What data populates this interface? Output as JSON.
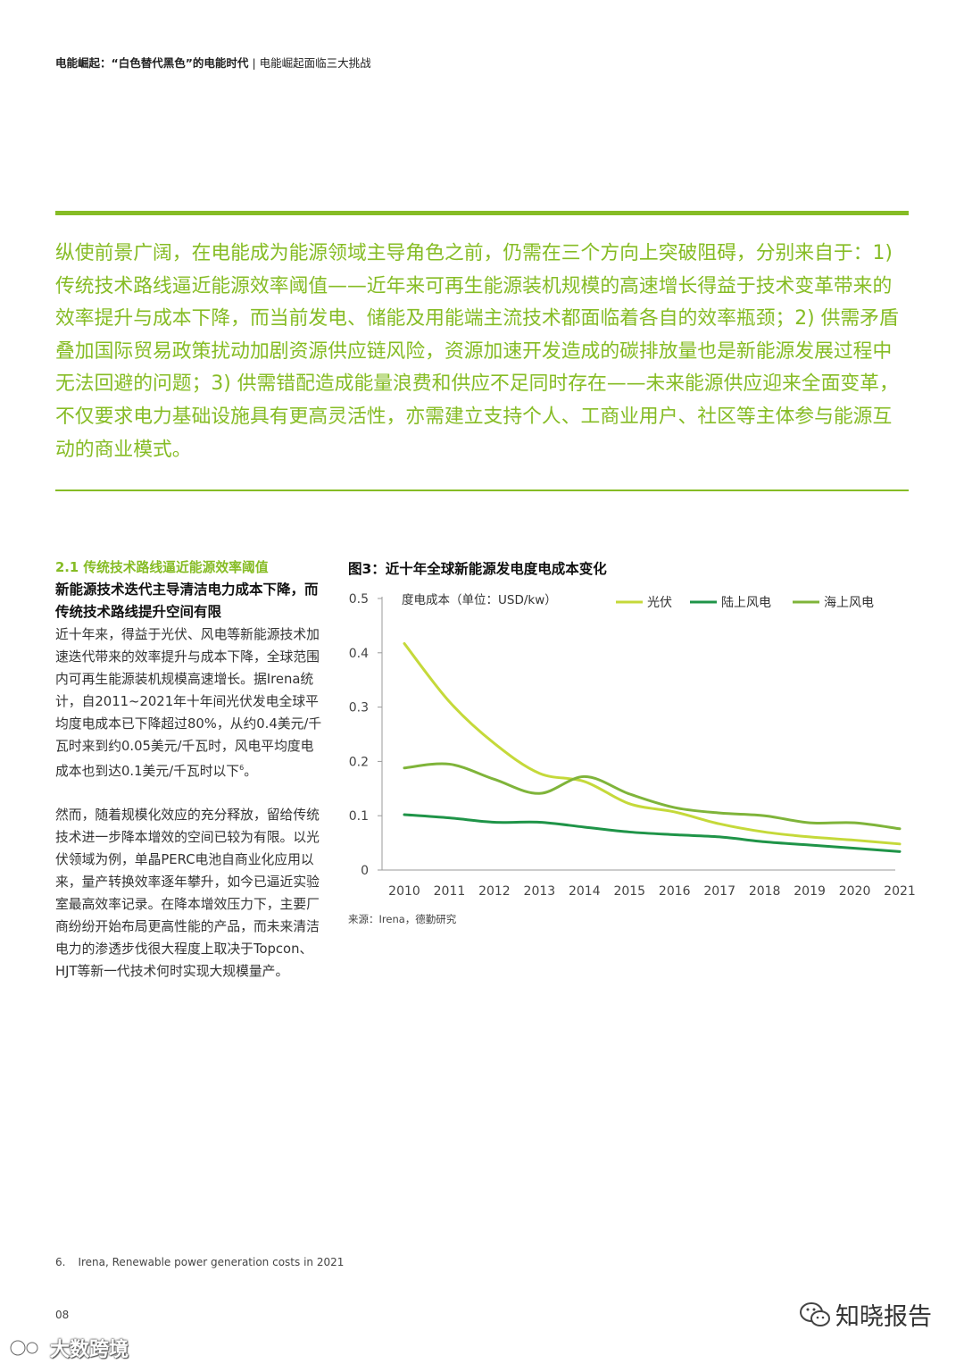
{
  "header": {
    "breadcrumb_main": "电能崛起：“白色替代黑色”的电能时代",
    "breadcrumb_sep": "|",
    "breadcrumb_sub": "电能崛起面临三大挑战"
  },
  "intro": {
    "text": "纵使前景广阔，在电能成为能源领域主导角色之前，仍需在三个方向上突破阻碍，分别来自于：1) 传统技术路线逼近能源效率阈值——近年来可再生能源装机规模的高速增长得益于技术变革带来的效率提升与成本下降，而当前发电、储能及用能端主流技术都面临着各自的效率瓶颈；2) 供需矛盾叠加国际贸易政策扰动加剧资源供应链风险，资源加速开发造成的碳排放量也是新能源发展过程中无法回避的问题；3) 供需错配造成能量浪费和供应不足同时存在——未来能源供应迎来全面变革，不仅要求电力基础设施具有更高灵活性，亦需建立支持个人、工商业用户、社区等主体参与能源互动的商业模式。"
  },
  "section": {
    "title": "2.1 传统技术路线逼近能源效率阈值",
    "subheading": "新能源技术迭代主导清洁电力成本下降，而传统技术路线提升空间有限",
    "para1": "近十年来，得益于光伏、风电等新能源技术加速迭代带来的效率提升与成本下降，全球范围内可再生能源装机规模高速增长。据Irena统计，自2011~2021年十年间光伏发电全球平均度电成本已下降超过80%，从约0.4美元/千瓦时来到约0.05美元/千瓦时，风电平均度电成本也到达0.1美元/千瓦时以下",
    "para1_sup": "6",
    "para1_end": "。",
    "para2": "然而，随着规模化效应的充分释放，留给传统技术进一步降本增效的空间已较为有限。以光伏领域为例，单晶PERC电池自商业化应用以来，量产转换效率逐年攀升，如今已逼近实验室最高效率记录。在降本增效压力下，主要厂商纷纷开始布局更高性能的产品，而未来清洁电力的渗透步伐很大程度上取决于Topcon、HJT等新一代技术何时实现大规模量产。"
  },
  "figure": {
    "title": "图3：近十年全球新能源发电度电成本变化",
    "source": "来源：Irena，德勤研究"
  },
  "chart_data": {
    "type": "line",
    "title": "图3：近十年全球新能源发电度电成本变化",
    "ylabel": "度电成本（单位：USD/kw）",
    "xlabel": "",
    "ylim": [
      0,
      0.5
    ],
    "yticks": [
      "0",
      "0.1",
      "0.2",
      "0.3",
      "0.4",
      "0.5"
    ],
    "x": [
      "2010",
      "2011",
      "2012",
      "2013",
      "2014",
      "2015",
      "2016",
      "2017",
      "2018",
      "2019",
      "2020",
      "2021"
    ],
    "grid": false,
    "legend_position": "top-right",
    "series": [
      {
        "name": "光伏",
        "color": "#c5d93a",
        "values": [
          0.417,
          0.31,
          0.233,
          0.178,
          0.163,
          0.122,
          0.107,
          0.085,
          0.07,
          0.061,
          0.055,
          0.048
        ]
      },
      {
        "name": "陆上风电",
        "color": "#1f9448",
        "values": [
          0.102,
          0.096,
          0.088,
          0.088,
          0.079,
          0.07,
          0.065,
          0.061,
          0.052,
          0.046,
          0.04,
          0.034
        ]
      },
      {
        "name": "海上风电",
        "color": "#7fb43a",
        "values": [
          0.188,
          0.195,
          0.167,
          0.141,
          0.172,
          0.14,
          0.115,
          0.105,
          0.1,
          0.087,
          0.087,
          0.076
        ]
      }
    ]
  },
  "footnote": {
    "number": "6.",
    "text": "Irena, Renewable power generation costs in 2021"
  },
  "page_number": "08",
  "watermarks": {
    "right": "知晓报告",
    "left": "大数跨境"
  }
}
